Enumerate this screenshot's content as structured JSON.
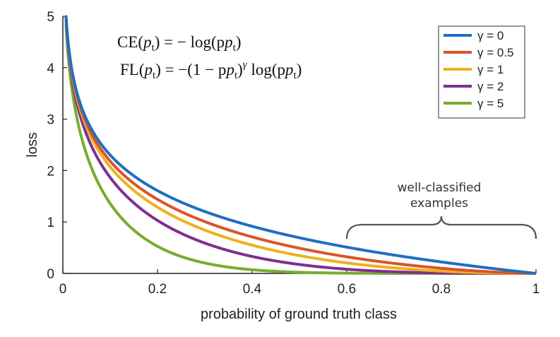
{
  "chart_data": {
    "type": "line",
    "title": "",
    "xlabel": "probability of ground truth class",
    "ylabel": "loss",
    "xlim": [
      0,
      1
    ],
    "ylim": [
      0,
      5
    ],
    "xticks": [
      0,
      0.2,
      0.4,
      0.6,
      0.8,
      1
    ],
    "yticks": [
      0,
      1,
      2,
      3,
      4,
      5
    ],
    "xtick_labels": [
      "0",
      "0.2",
      "0.4",
      "0.6",
      "0.8",
      "1"
    ],
    "ytick_labels": [
      "0",
      "1",
      "2",
      "3",
      "4",
      "5"
    ],
    "grid": false,
    "legend_position": "top-right",
    "formulas": {
      "ce": {
        "lhs": "CE",
        "arg": "p",
        "sub": "t",
        "rhs": "= − log(p",
        "rhs_close": ")"
      },
      "fl": {
        "lhs": "FL",
        "arg": "p",
        "sub": "t",
        "rhs_a": "= −(1 − p",
        "rhs_b": ")",
        "exp": "γ",
        "rhs_c": " log(p",
        "rhs_close": ")"
      }
    },
    "annotation": {
      "lines": [
        "well-classified",
        "examples"
      ],
      "x_range": [
        0.6,
        1.0
      ]
    },
    "series": [
      {
        "name": "γ = 0",
        "gamma": 0,
        "color": "#1f6fc0"
      },
      {
        "name": "γ = 0.5",
        "gamma": 0.5,
        "color": "#d9552a"
      },
      {
        "name": "γ = 1",
        "gamma": 1,
        "color": "#edb120"
      },
      {
        "name": "γ = 2",
        "gamma": 2,
        "color": "#7e2f8e"
      },
      {
        "name": "γ = 5",
        "gamma": 5,
        "color": "#77ac30"
      }
    ],
    "series_note": "each curve is FL(p) = -(1-p)^gamma * ln(p) for p in (0, 1]"
  }
}
